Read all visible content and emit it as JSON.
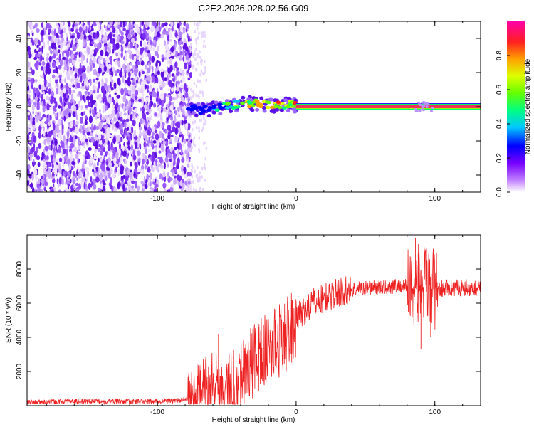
{
  "title": "C2E2.2026.028.02.56.G09",
  "colors": {
    "snr_line": "#ee2222",
    "axis": "#000000",
    "plateau": "#ee3355"
  },
  "chart_data": [
    {
      "type": "heatmap",
      "xlabel": "Height of straight line (km)",
      "ylabel": "Frequency (Hz)",
      "xlim": [
        -194,
        133
      ],
      "ylim": [
        -50,
        50
      ],
      "xticks": [
        -100,
        0,
        100
      ],
      "xtick_labels": [
        "-100",
        "0",
        "100"
      ],
      "yticks": [
        -40,
        -20,
        0,
        20,
        40
      ],
      "ytick_labels": [
        "-40",
        "-20",
        "0",
        "20",
        "40"
      ],
      "noise_region_km": [
        -194,
        -76
      ],
      "signal_trace": [
        {
          "x": -78,
          "f": 0,
          "amp": 0.15
        },
        {
          "x": -70,
          "f": -2,
          "amp": 0.25
        },
        {
          "x": -60,
          "f": -1,
          "amp": 0.4
        },
        {
          "x": -50,
          "f": 0,
          "amp": 0.55
        },
        {
          "x": -40,
          "f": 2,
          "amp": 0.75
        },
        {
          "x": -30,
          "f": 2,
          "amp": 0.8
        },
        {
          "x": -20,
          "f": 1,
          "amp": 0.85
        },
        {
          "x": -10,
          "f": 1,
          "amp": 0.8
        },
        {
          "x": -2,
          "f": 2,
          "amp": 0.75
        },
        {
          "x": 0,
          "f": 0,
          "amp": 0.95
        },
        {
          "x": 133,
          "f": 0,
          "amp": 0.95
        }
      ],
      "colorbar": {
        "label": "Normalized spectral amplitude",
        "range": [
          0,
          1
        ],
        "ticks": [
          0,
          0.2,
          0.4,
          0.6,
          0.8
        ],
        "tick_labels": [
          "0.0",
          "0.2",
          "0.4",
          "0.6",
          "0.8"
        ]
      }
    },
    {
      "type": "line",
      "xlabel": "Height of straight line (km)",
      "ylabel": "SNR (10 * v/v)",
      "xlim": [
        -194,
        133
      ],
      "ylim": [
        0,
        10000
      ],
      "xticks": [
        -100,
        0,
        100
      ],
      "xtick_labels": [
        "-100",
        "0",
        "100"
      ],
      "yticks": [
        2000,
        4000,
        6000,
        8000
      ],
      "ytick_labels": [
        "2000",
        "4000",
        "6000",
        "8000"
      ],
      "envelope": {
        "x": [
          -194,
          -150,
          -100,
          -85,
          -78,
          -70,
          -65,
          -60,
          -55,
          -50,
          -45,
          -40,
          -35,
          -30,
          -25,
          -20,
          -15,
          -10,
          -5,
          0,
          5,
          10,
          20,
          30,
          40,
          50,
          60,
          70,
          80,
          85,
          90,
          95,
          100,
          110,
          120,
          133
        ],
        "y": [
          200,
          250,
          250,
          300,
          400,
          700,
          1200,
          1600,
          1000,
          800,
          1400,
          1800,
          2300,
          2700,
          3100,
          3300,
          3700,
          3900,
          4300,
          5000,
          5500,
          5900,
          6300,
          6600,
          6800,
          6900,
          6900,
          7000,
          7000,
          7000,
          7100,
          6900,
          6800,
          6900,
          6900,
          6900
        ]
      },
      "spikes": [
        {
          "x": -56,
          "y": 4200
        },
        {
          "x": 86,
          "y": 9800
        },
        {
          "x": 88,
          "y": 8900
        },
        {
          "x": 90,
          "y": 3300
        },
        {
          "x": 94,
          "y": 9200
        },
        {
          "x": 97,
          "y": 4000
        },
        {
          "x": 99,
          "y": 8800
        }
      ]
    }
  ]
}
